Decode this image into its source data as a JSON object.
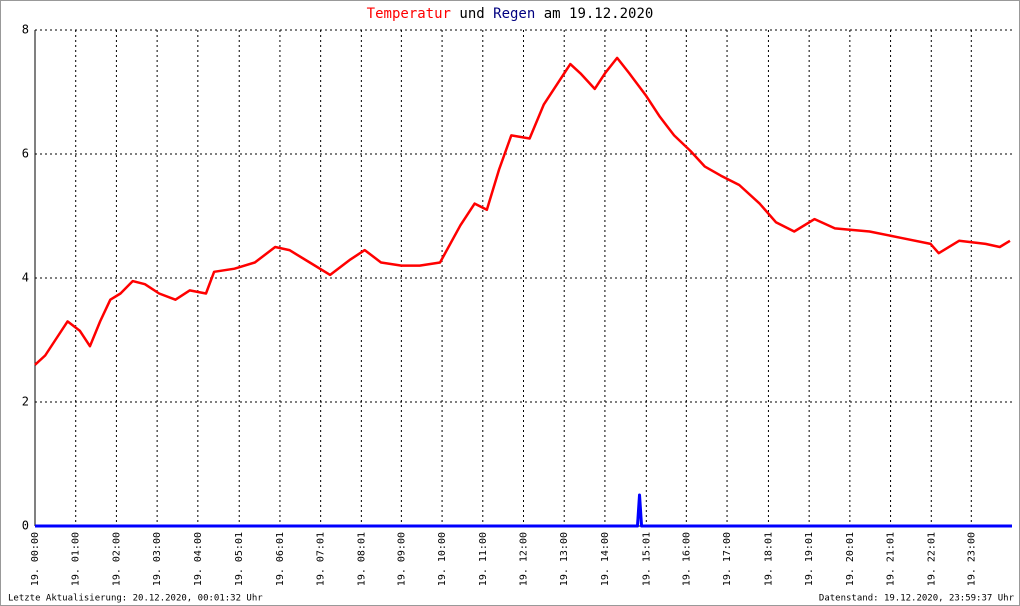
{
  "chart_data": {
    "type": "line",
    "title": [
      {
        "text": "Temperatur",
        "color": "#ff0000"
      },
      {
        "text": "und",
        "color": "#000000"
      },
      {
        "text": "Regen",
        "color": "#000080"
      },
      {
        "text": "am 19.12.2020",
        "color": "#000000"
      }
    ],
    "xlim": [
      0,
      24
    ],
    "xticks": [
      {
        "value": 0,
        "label": "19. 00:00"
      },
      {
        "value": 1,
        "label": "19. 01:00"
      },
      {
        "value": 2,
        "label": "19. 02:00"
      },
      {
        "value": 3,
        "label": "19. 03:00"
      },
      {
        "value": 4,
        "label": "19. 04:00"
      },
      {
        "value": 5.017,
        "label": "19. 05:01"
      },
      {
        "value": 6.017,
        "label": "19. 06:01"
      },
      {
        "value": 7.017,
        "label": "19. 07:01"
      },
      {
        "value": 8.017,
        "label": "19. 08:01"
      },
      {
        "value": 9,
        "label": "19. 09:00"
      },
      {
        "value": 10,
        "label": "19. 10:00"
      },
      {
        "value": 11,
        "label": "19. 11:00"
      },
      {
        "value": 12,
        "label": "19. 12:00"
      },
      {
        "value": 13,
        "label": "19. 13:00"
      },
      {
        "value": 14,
        "label": "19. 14:00"
      },
      {
        "value": 15.017,
        "label": "19. 15:01"
      },
      {
        "value": 16,
        "label": "19. 16:00"
      },
      {
        "value": 17,
        "label": "19. 17:00"
      },
      {
        "value": 18.017,
        "label": "19. 18:01"
      },
      {
        "value": 19.017,
        "label": "19. 19:01"
      },
      {
        "value": 20.017,
        "label": "19. 20:01"
      },
      {
        "value": 21.017,
        "label": "19. 21:01"
      },
      {
        "value": 22.017,
        "label": "19. 22:01"
      },
      {
        "value": 23,
        "label": "19. 23:00"
      }
    ],
    "ylim": [
      0,
      8
    ],
    "yticks": [
      0,
      2,
      4,
      6,
      8
    ],
    "grid": true,
    "series": [
      {
        "name": "Temperatur",
        "color": "#ff0000",
        "x": [
          0,
          0.25,
          0.5,
          0.8,
          1.1,
          1.35,
          1.6,
          1.85,
          2.1,
          2.4,
          2.7,
          3.05,
          3.45,
          3.8,
          4.2,
          4.4,
          4.9,
          5.4,
          5.9,
          6.25,
          6.75,
          7.25,
          7.75,
          8.1,
          8.5,
          9.0,
          9.45,
          9.95,
          10.45,
          10.8,
          11.1,
          11.4,
          11.7,
          12.15,
          12.5,
          12.9,
          13.15,
          13.4,
          13.75,
          14.0,
          14.3,
          14.6,
          15.0,
          15.35,
          15.7,
          16.1,
          16.45,
          16.85,
          17.3,
          17.8,
          18.2,
          18.65,
          19.15,
          19.65,
          20.5,
          21.25,
          22.0,
          22.2,
          22.7,
          23.35,
          23.7,
          23.95
        ],
        "values": [
          2.6,
          2.75,
          3.0,
          3.3,
          3.15,
          2.9,
          3.3,
          3.65,
          3.75,
          3.95,
          3.9,
          3.75,
          3.65,
          3.8,
          3.75,
          4.1,
          4.15,
          4.25,
          4.5,
          4.45,
          4.25,
          4.05,
          4.3,
          4.45,
          4.25,
          4.2,
          4.2,
          4.25,
          4.85,
          5.2,
          5.1,
          5.75,
          6.3,
          6.25,
          6.8,
          7.2,
          7.45,
          7.3,
          7.05,
          7.3,
          7.55,
          7.3,
          6.95,
          6.6,
          6.3,
          6.05,
          5.8,
          5.65,
          5.5,
          5.2,
          4.9,
          4.75,
          4.95,
          4.8,
          4.75,
          4.65,
          4.55,
          4.4,
          4.6,
          4.55,
          4.5,
          4.6
        ]
      },
      {
        "name": "Regen",
        "color": "#0000ff",
        "x": [
          0,
          14.8,
          14.85,
          14.9,
          24
        ],
        "values": [
          0,
          0,
          0.5,
          0,
          0
        ]
      }
    ],
    "footer_left": "Letzte Aktualisierung: 20.12.2020, 00:01:32 Uhr",
    "footer_right": "Datenstand: 19.12.2020, 23:59:37 Uhr"
  }
}
